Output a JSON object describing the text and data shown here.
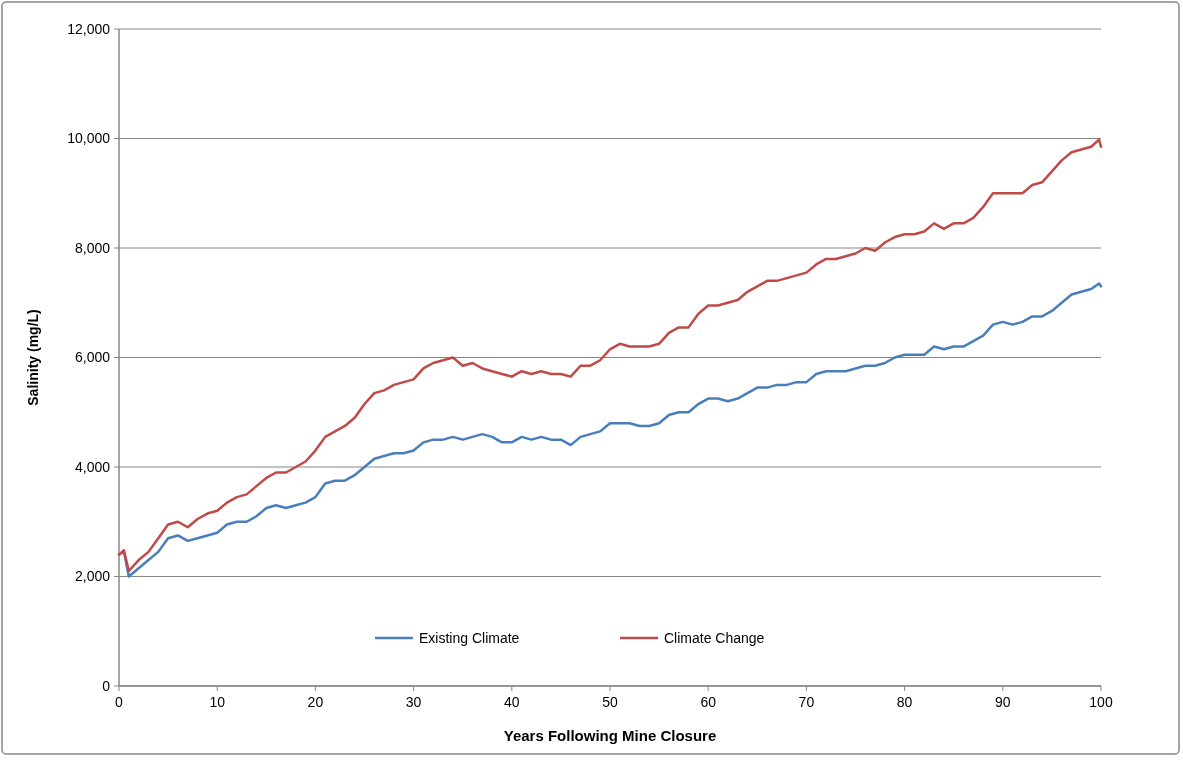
{
  "chart_data": {
    "type": "line",
    "xlabel": "Years Following Mine Closure",
    "ylabel": "Salinity (mg/L)",
    "x": [
      0,
      0.5,
      1,
      2,
      3,
      4,
      5,
      6,
      7,
      8,
      9,
      10,
      11,
      12,
      13,
      14,
      15,
      16,
      17,
      18,
      19,
      20,
      21,
      22,
      23,
      24,
      25,
      26,
      27,
      28,
      29,
      30,
      31,
      32,
      33,
      34,
      35,
      36,
      37,
      38,
      39,
      40,
      41,
      42,
      43,
      44,
      45,
      46,
      47,
      48,
      49,
      50,
      51,
      52,
      53,
      54,
      55,
      56,
      57,
      58,
      59,
      60,
      61,
      62,
      63,
      64,
      65,
      66,
      67,
      68,
      69,
      70,
      71,
      72,
      73,
      74,
      75,
      76,
      77,
      78,
      79,
      80,
      81,
      82,
      83,
      84,
      85,
      86,
      87,
      88,
      89,
      90,
      91,
      92,
      93,
      94,
      95,
      96,
      97,
      98,
      99,
      99.8,
      100
    ],
    "series": [
      {
        "name": "Existing Climate",
        "color": "#4a7ebb",
        "values": [
          2400,
          2450,
          2000,
          2150,
          2300,
          2450,
          2700,
          2750,
          2650,
          2700,
          2750,
          2800,
          2950,
          3000,
          3000,
          3100,
          3250,
          3300,
          3250,
          3300,
          3350,
          3450,
          3700,
          3750,
          3750,
          3850,
          4000,
          4150,
          4200,
          4250,
          4250,
          4300,
          4450,
          4500,
          4500,
          4550,
          4500,
          4550,
          4600,
          4550,
          4450,
          4450,
          4550,
          4500,
          4550,
          4500,
          4500,
          4400,
          4550,
          4600,
          4650,
          4800,
          4800,
          4800,
          4750,
          4750,
          4800,
          4950,
          5000,
          5000,
          5150,
          5250,
          5250,
          5200,
          5250,
          5350,
          5450,
          5450,
          5500,
          5500,
          5550,
          5550,
          5700,
          5750,
          5750,
          5750,
          5800,
          5850,
          5850,
          5900,
          6000,
          6050,
          6050,
          6050,
          6200,
          6150,
          6200,
          6200,
          6300,
          6400,
          6600,
          6650,
          6600,
          6650,
          6750,
          6750,
          6850,
          7000,
          7150,
          7200,
          7250,
          7350,
          7300
        ]
      },
      {
        "name": "Climate Change",
        "color": "#be4b48",
        "values": [
          2400,
          2480,
          2100,
          2300,
          2450,
          2700,
          2950,
          3000,
          2900,
          3050,
          3150,
          3200,
          3350,
          3450,
          3500,
          3650,
          3800,
          3900,
          3900,
          4000,
          4100,
          4300,
          4550,
          4650,
          4750,
          4900,
          5150,
          5350,
          5400,
          5500,
          5550,
          5600,
          5800,
          5900,
          5950,
          6000,
          5850,
          5900,
          5800,
          5750,
          5700,
          5650,
          5750,
          5700,
          5750,
          5700,
          5700,
          5650,
          5850,
          5850,
          5950,
          6150,
          6250,
          6200,
          6200,
          6200,
          6250,
          6450,
          6550,
          6550,
          6800,
          6950,
          6950,
          7000,
          7050,
          7200,
          7300,
          7400,
          7400,
          7450,
          7500,
          7550,
          7700,
          7800,
          7800,
          7850,
          7900,
          8000,
          7950,
          8100,
          8200,
          8250,
          8250,
          8300,
          8450,
          8350,
          8450,
          8450,
          8550,
          8750,
          9000,
          9000,
          9000,
          9000,
          9150,
          9200,
          9400,
          9600,
          9750,
          9800,
          9850,
          9980,
          9850
        ]
      }
    ],
    "xlim": [
      0,
      100
    ],
    "xticks": [
      0,
      10,
      20,
      30,
      40,
      50,
      60,
      70,
      80,
      90,
      100
    ],
    "ylim": [
      0,
      12000
    ],
    "yticks": [
      0,
      {
        "value": 2000,
        "label": "2,000"
      },
      {
        "value": 4000,
        "label": "4,000"
      },
      {
        "value": 6000,
        "label": "6,000"
      },
      {
        "value": 8000,
        "label": "8,000"
      },
      {
        "value": 10000,
        "label": "10,000"
      },
      {
        "value": 12000,
        "label": "12,000"
      }
    ],
    "grid": "y",
    "legend": "bottom",
    "marker": "none",
    "line_style": "solid"
  }
}
